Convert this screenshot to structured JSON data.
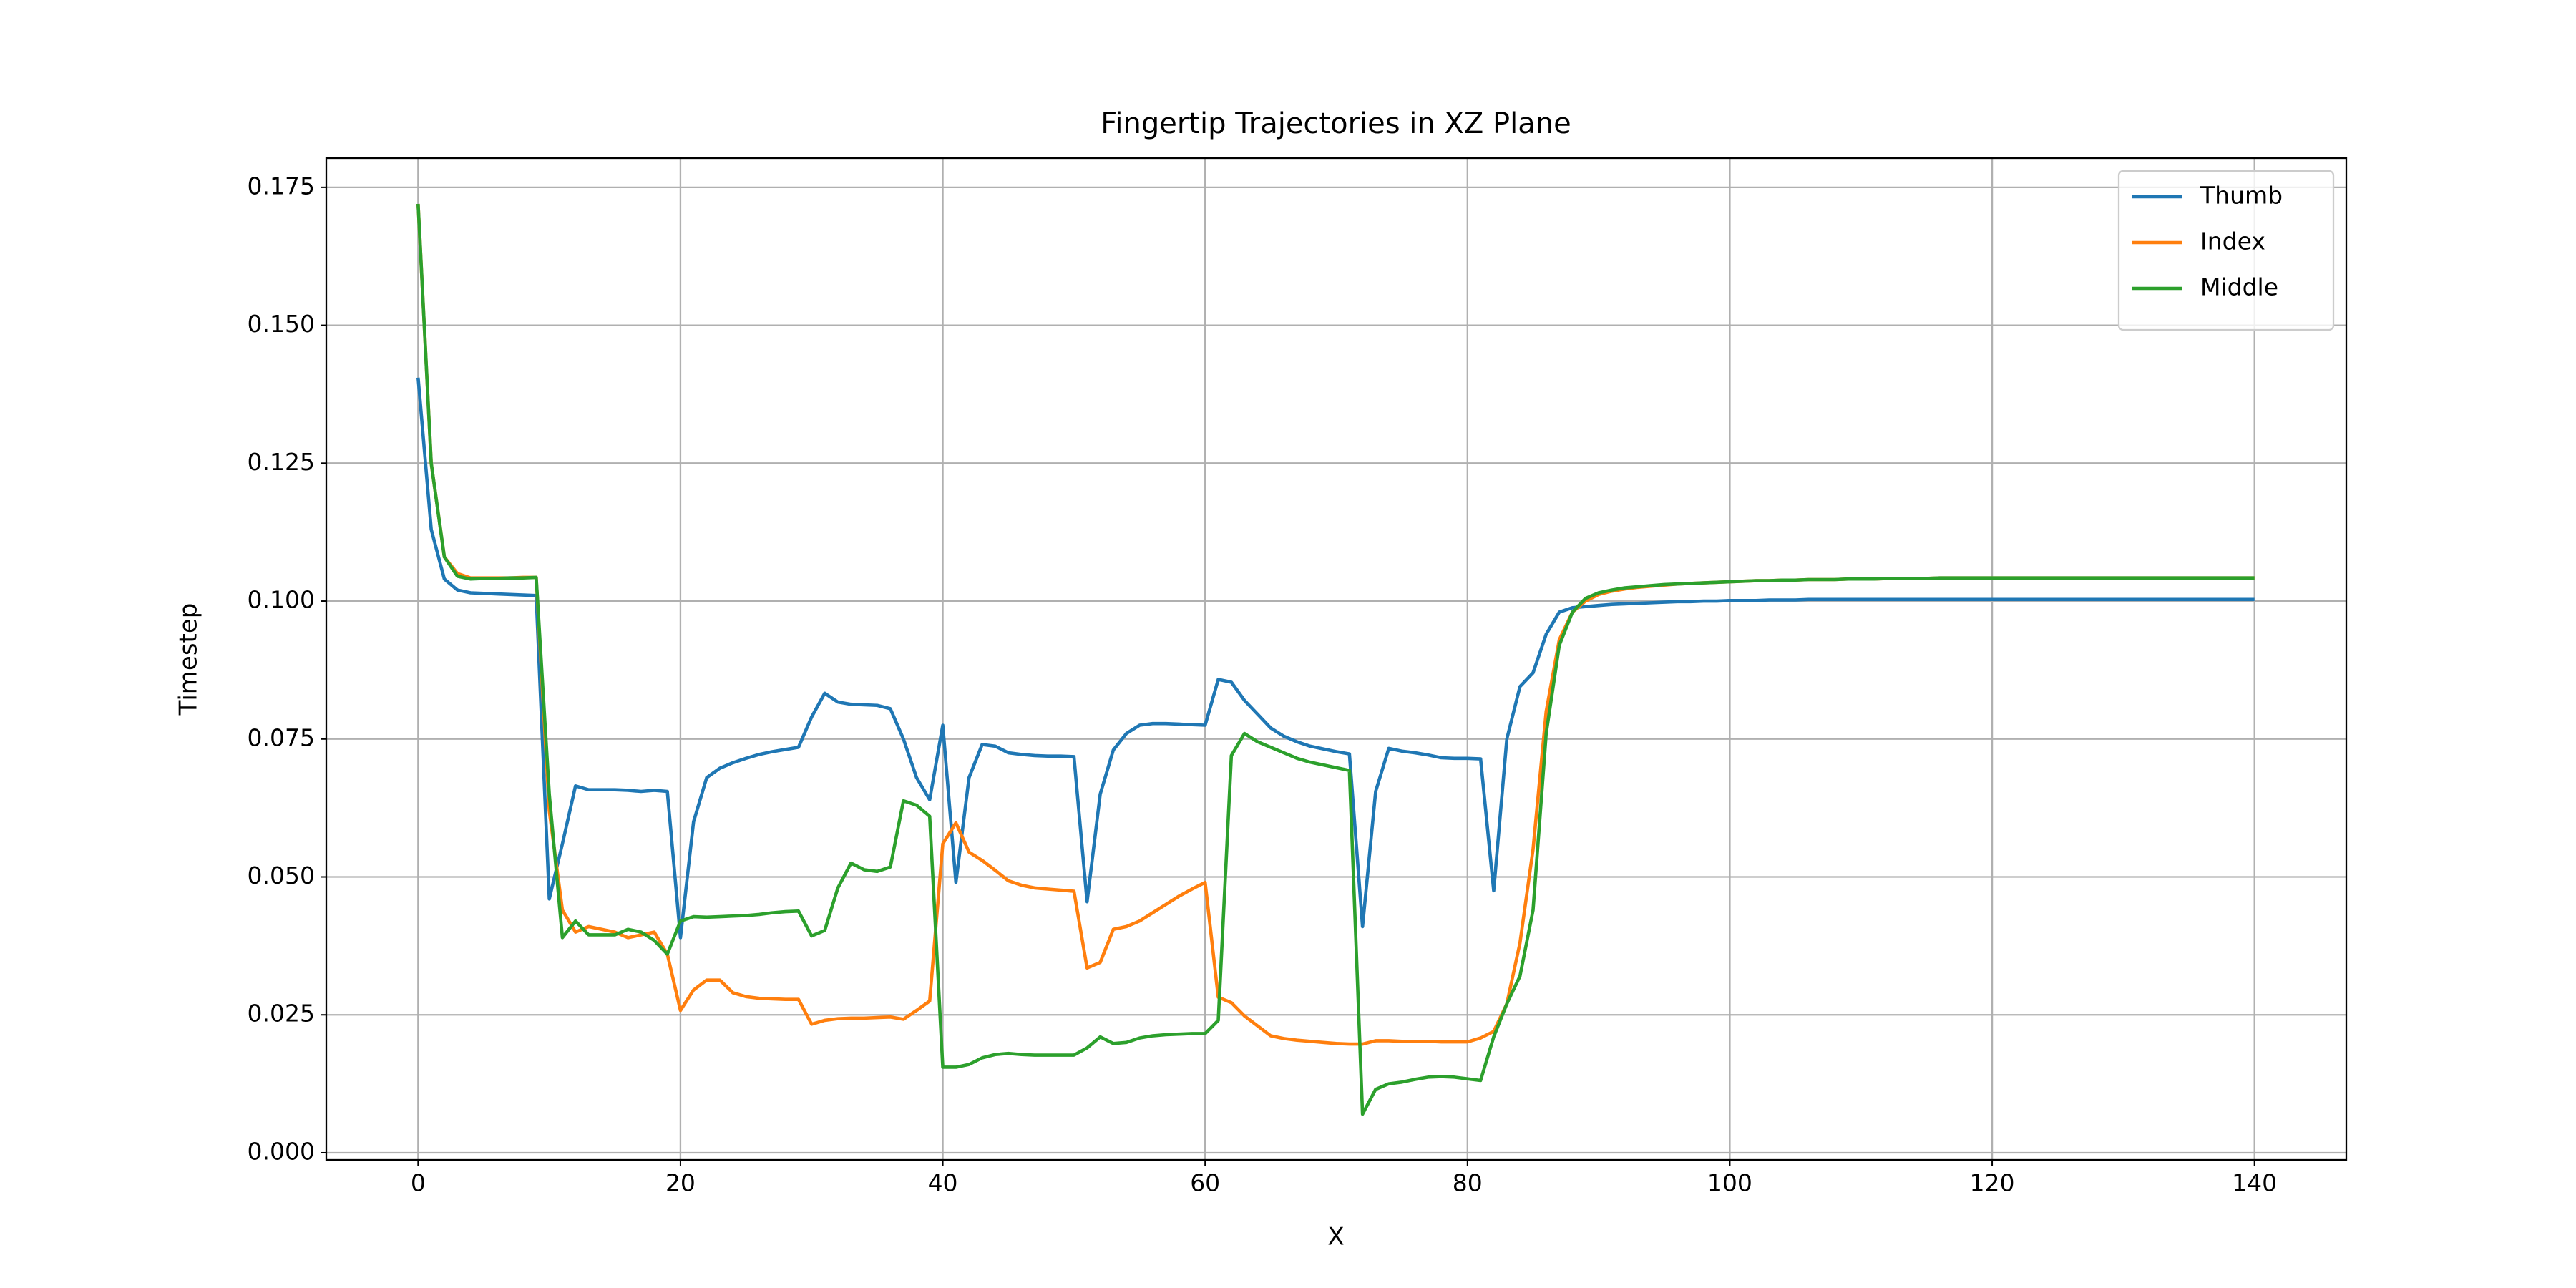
{
  "chart_data": {
    "type": "line",
    "title": "Fingertip Trajectories in XZ Plane",
    "xlabel": "X",
    "ylabel": "Timestep",
    "x": [
      0,
      1,
      2,
      3,
      4,
      5,
      6,
      7,
      8,
      9,
      10,
      11,
      12,
      13,
      14,
      15,
      16,
      17,
      18,
      19,
      20,
      21,
      22,
      23,
      24,
      25,
      26,
      27,
      28,
      29,
      30,
      31,
      32,
      33,
      34,
      35,
      36,
      37,
      38,
      39,
      40,
      41,
      42,
      43,
      44,
      45,
      46,
      47,
      48,
      49,
      50,
      51,
      52,
      53,
      54,
      55,
      56,
      57,
      58,
      59,
      60,
      61,
      62,
      63,
      64,
      65,
      66,
      67,
      68,
      69,
      70,
      71,
      72,
      73,
      74,
      75,
      76,
      77,
      78,
      79,
      80,
      81,
      82,
      83,
      84,
      85,
      86,
      87,
      88,
      89,
      90,
      91,
      92,
      93,
      94,
      95,
      96,
      97,
      98,
      99,
      100,
      101,
      102,
      103,
      104,
      105,
      106,
      107,
      108,
      109,
      110,
      111,
      112,
      113,
      114,
      115,
      116,
      117,
      118,
      119,
      120,
      121,
      122,
      123,
      124,
      125,
      126,
      127,
      128,
      129,
      130,
      131,
      132,
      133,
      134,
      135,
      136,
      137,
      138,
      139,
      140
    ],
    "series": [
      {
        "name": "Thumb",
        "color": "#1f77b4",
        "values": [
          0.1405,
          0.113,
          0.104,
          0.102,
          0.1015,
          0.1014,
          0.1013,
          0.1012,
          0.1011,
          0.101,
          0.046,
          0.056,
          0.0665,
          0.0658,
          0.0658,
          0.0658,
          0.0657,
          0.0655,
          0.0657,
          0.0655,
          0.039,
          0.06,
          0.068,
          0.0697,
          0.0707,
          0.0715,
          0.0722,
          0.0727,
          0.0731,
          0.0735,
          0.079,
          0.0833,
          0.0817,
          0.0813,
          0.0812,
          0.0811,
          0.0805,
          0.075,
          0.068,
          0.064,
          0.0775,
          0.049,
          0.068,
          0.074,
          0.0737,
          0.0725,
          0.0722,
          0.072,
          0.0719,
          0.0719,
          0.0718,
          0.0455,
          0.065,
          0.073,
          0.076,
          0.0775,
          0.0778,
          0.0778,
          0.0777,
          0.0776,
          0.0775,
          0.0858,
          0.0853,
          0.082,
          0.0795,
          0.077,
          0.0755,
          0.0745,
          0.0737,
          0.0732,
          0.0727,
          0.0723,
          0.041,
          0.0655,
          0.0733,
          0.0728,
          0.0725,
          0.0721,
          0.0716,
          0.0715,
          0.0715,
          0.0714,
          0.0475,
          0.075,
          0.0845,
          0.087,
          0.094,
          0.098,
          0.0988,
          0.099,
          0.0992,
          0.0994,
          0.0995,
          0.0996,
          0.0997,
          0.0998,
          0.0999,
          0.0999,
          0.1,
          0.1,
          0.1001,
          0.1001,
          0.1001,
          0.1002,
          0.1002,
          0.1002,
          0.1003,
          0.1003,
          0.1003,
          0.1003,
          0.1003,
          0.1003,
          0.1003,
          0.1003,
          0.1003,
          0.1003,
          0.1003,
          0.1003,
          0.1003,
          0.1003,
          0.1003,
          0.1003,
          0.1003,
          0.1003,
          0.1003,
          0.1003,
          0.1003,
          0.1003,
          0.1003,
          0.1003,
          0.1003,
          0.1003,
          0.1003,
          0.1003,
          0.1003,
          0.1003,
          0.1003,
          0.1003,
          0.1003,
          0.1003,
          0.1003
        ]
      },
      {
        "name": "Index",
        "color": "#ff7f0e",
        "values": [
          0.172,
          0.125,
          0.108,
          0.105,
          0.1042,
          0.1042,
          0.1042,
          0.1042,
          0.1043,
          0.1043,
          0.062,
          0.044,
          0.04,
          0.041,
          0.0405,
          0.04,
          0.039,
          0.0395,
          0.04,
          0.036,
          0.0258,
          0.0295,
          0.0313,
          0.0313,
          0.029,
          0.0283,
          0.028,
          0.0279,
          0.0278,
          0.0278,
          0.0233,
          0.024,
          0.0243,
          0.0244,
          0.0244,
          0.0245,
          0.0246,
          0.0242,
          0.0258,
          0.0275,
          0.056,
          0.0598,
          0.0545,
          0.053,
          0.0512,
          0.0493,
          0.0485,
          0.048,
          0.0478,
          0.0476,
          0.0474,
          0.0335,
          0.0345,
          0.0405,
          0.041,
          0.042,
          0.0435,
          0.045,
          0.0465,
          0.0478,
          0.049,
          0.0282,
          0.0272,
          0.0248,
          0.023,
          0.0212,
          0.0207,
          0.0204,
          0.0202,
          0.02,
          0.0198,
          0.0197,
          0.0197,
          0.0203,
          0.0203,
          0.0202,
          0.0202,
          0.0202,
          0.0201,
          0.0201,
          0.0201,
          0.0208,
          0.022,
          0.027,
          0.038,
          0.055,
          0.08,
          0.093,
          0.098,
          0.1,
          0.1012,
          0.1018,
          0.1022,
          0.1025,
          0.1027,
          0.1029,
          0.1031,
          0.1032,
          0.1033,
          0.1034,
          0.1035,
          0.1036,
          0.1037,
          0.1037,
          0.1038,
          0.1038,
          0.1039,
          0.1039,
          0.1039,
          0.104,
          0.104,
          0.104,
          0.1041,
          0.1041,
          0.1041,
          0.1041,
          0.1042,
          0.1042,
          0.1042,
          0.1042,
          0.1042,
          0.1042,
          0.1042,
          0.1042,
          0.1042,
          0.1042,
          0.1042,
          0.1042,
          0.1042,
          0.1042,
          0.1042,
          0.1042,
          0.1042,
          0.1042,
          0.1042,
          0.1042,
          0.1042,
          0.1042,
          0.1042,
          0.1042,
          0.1042
        ]
      },
      {
        "name": "Middle",
        "color": "#2ca02c",
        "values": [
          0.172,
          0.125,
          0.108,
          0.1045,
          0.104,
          0.1041,
          0.1041,
          0.1042,
          0.1042,
          0.1043,
          0.065,
          0.039,
          0.042,
          0.0395,
          0.0395,
          0.0395,
          0.0405,
          0.04,
          0.0385,
          0.036,
          0.042,
          0.0428,
          0.0427,
          0.0428,
          0.0429,
          0.043,
          0.0432,
          0.0435,
          0.0437,
          0.0438,
          0.0393,
          0.0403,
          0.048,
          0.0525,
          0.0513,
          0.051,
          0.0518,
          0.0638,
          0.063,
          0.061,
          0.0155,
          0.0155,
          0.016,
          0.0172,
          0.0178,
          0.018,
          0.0178,
          0.0177,
          0.0177,
          0.0177,
          0.0177,
          0.019,
          0.021,
          0.0198,
          0.02,
          0.0208,
          0.0212,
          0.0214,
          0.0215,
          0.0216,
          0.0216,
          0.024,
          0.072,
          0.076,
          0.0745,
          0.0735,
          0.0725,
          0.0715,
          0.0708,
          0.0703,
          0.0698,
          0.0693,
          0.007,
          0.0115,
          0.0125,
          0.0128,
          0.0133,
          0.0137,
          0.0138,
          0.0137,
          0.0134,
          0.0131,
          0.021,
          0.027,
          0.032,
          0.044,
          0.076,
          0.092,
          0.098,
          0.1005,
          0.1015,
          0.102,
          0.1024,
          0.1026,
          0.1028,
          0.103,
          0.1031,
          0.1032,
          0.1033,
          0.1034,
          0.1035,
          0.1036,
          0.1037,
          0.1037,
          0.1038,
          0.1038,
          0.1039,
          0.1039,
          0.1039,
          0.104,
          0.104,
          0.104,
          0.1041,
          0.1041,
          0.1041,
          0.1041,
          0.1042,
          0.1042,
          0.1042,
          0.1042,
          0.1042,
          0.1042,
          0.1042,
          0.1042,
          0.1042,
          0.1042,
          0.1042,
          0.1042,
          0.1042,
          0.1042,
          0.1042,
          0.1042,
          0.1042,
          0.1042,
          0.1042,
          0.1042,
          0.1042,
          0.1042,
          0.1042,
          0.1042,
          0.1042
        ]
      }
    ],
    "xlim": [
      -7,
      147
    ],
    "ylim": [
      -0.0013,
      0.1803
    ],
    "xticks": [
      0,
      20,
      40,
      60,
      80,
      100,
      120,
      140
    ],
    "yticks": [
      {
        "value": 0,
        "label": "0.000"
      },
      0.025,
      {
        "value": 0.05,
        "label": "0.050"
      },
      0.075,
      {
        "value": 0.1,
        "label": "0.100"
      },
      0.125,
      {
        "value": 0.15,
        "label": "0.150"
      },
      0.175
    ],
    "grid": true,
    "legend": "upper right"
  }
}
